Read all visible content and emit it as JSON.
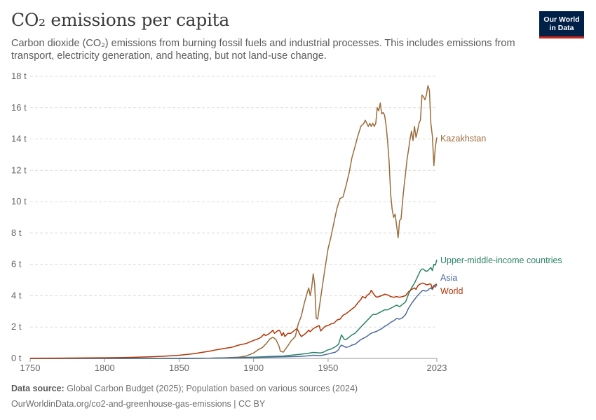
{
  "header": {
    "title": "CO₂ emissions per capita",
    "subtitle": "Carbon dioxide (CO₂) emissions from burning fossil fuels and industrial processes. This includes emissions from transport, electricity generation, and heating, but not land-use change.",
    "logo_line1": "Our World",
    "logo_line2": "in Data"
  },
  "footer": {
    "source_label": "Data source:",
    "source_text": "Global Carbon Budget (2025); Population based on various sources (2024)",
    "url_text": "OurWorldinData.org/co2-and-greenhouse-gas-emissions | CC BY"
  },
  "chart_data": {
    "type": "line",
    "title": "CO₂ emissions per capita",
    "xlim": [
      1750,
      2023
    ],
    "ylim": [
      0,
      18
    ],
    "x_ticks": [
      1750,
      1800,
      1850,
      1900,
      1950,
      2023
    ],
    "y_ticks": [
      0,
      2,
      4,
      6,
      8,
      10,
      12,
      14,
      16,
      18
    ],
    "y_tick_labels": [
      "0 t",
      "2 t",
      "4 t",
      "6 t",
      "8 t",
      "10 t",
      "12 t",
      "14 t",
      "16 t",
      "18 t"
    ],
    "grid": "horizontal-dashed",
    "legend": "line-end labels",
    "series": [
      {
        "name": "Kazakhstan",
        "color": "#9a6c3a",
        "points": [
          [
            1850,
            0
          ],
          [
            1870,
            0.01
          ],
          [
            1880,
            0.03
          ],
          [
            1890,
            0.08
          ],
          [
            1895,
            0.15
          ],
          [
            1900,
            0.35
          ],
          [
            1903,
            0.55
          ],
          [
            1906,
            0.7
          ],
          [
            1909,
            1.0
          ],
          [
            1911,
            1.25
          ],
          [
            1913,
            1.35
          ],
          [
            1915,
            1.2
          ],
          [
            1917,
            0.8
          ],
          [
            1918,
            0.45
          ],
          [
            1920,
            0.4
          ],
          [
            1921,
            0.55
          ],
          [
            1923,
            0.8
          ],
          [
            1925,
            1.1
          ],
          [
            1928,
            1.4
          ],
          [
            1930,
            2.2
          ],
          [
            1932,
            2.7
          ],
          [
            1934,
            3.5
          ],
          [
            1936,
            4.2
          ],
          [
            1937,
            4.5
          ],
          [
            1938,
            4.0
          ],
          [
            1939,
            4.5
          ],
          [
            1940,
            5.4
          ],
          [
            1941,
            4.7
          ],
          [
            1942,
            2.6
          ],
          [
            1943,
            2.5
          ],
          [
            1944,
            3.2
          ],
          [
            1946,
            4.5
          ],
          [
            1948,
            5.8
          ],
          [
            1950,
            7.0
          ],
          [
            1952,
            7.8
          ],
          [
            1954,
            8.7
          ],
          [
            1956,
            9.6
          ],
          [
            1958,
            10.2
          ],
          [
            1960,
            10.3
          ],
          [
            1962,
            11.0
          ],
          [
            1964,
            11.8
          ],
          [
            1966,
            12.8
          ],
          [
            1968,
            13.5
          ],
          [
            1970,
            14.2
          ],
          [
            1972,
            14.8
          ],
          [
            1974,
            15.0
          ],
          [
            1975,
            15.2
          ],
          [
            1976,
            15.0
          ],
          [
            1977,
            14.8
          ],
          [
            1978,
            15.0
          ],
          [
            1979,
            14.8
          ],
          [
            1980,
            15.0
          ],
          [
            1981,
            14.8
          ],
          [
            1982,
            15.0
          ],
          [
            1983,
            16.0
          ],
          [
            1984,
            15.8
          ],
          [
            1985,
            16.3
          ],
          [
            1986,
            15.6
          ],
          [
            1987,
            15.7
          ],
          [
            1988,
            15.5
          ],
          [
            1989,
            14.8
          ],
          [
            1990,
            13.8
          ],
          [
            1991,
            12.5
          ],
          [
            1992,
            10.5
          ],
          [
            1993,
            9.5
          ],
          [
            1994,
            9.0
          ],
          [
            1995,
            9.2
          ],
          [
            1996,
            8.5
          ],
          [
            1997,
            7.7
          ],
          [
            1998,
            8.8
          ],
          [
            1999,
            8.9
          ],
          [
            2000,
            10.0
          ],
          [
            2001,
            11.0
          ],
          [
            2002,
            11.8
          ],
          [
            2003,
            12.7
          ],
          [
            2004,
            13.3
          ],
          [
            2005,
            14.0
          ],
          [
            2006,
            14.5
          ],
          [
            2007,
            13.9
          ],
          [
            2008,
            14.8
          ],
          [
            2009,
            14.1
          ],
          [
            2010,
            14.5
          ],
          [
            2011,
            15.0
          ],
          [
            2012,
            15.2
          ],
          [
            2013,
            16.8
          ],
          [
            2014,
            16.7
          ],
          [
            2015,
            16.5
          ],
          [
            2016,
            16.8
          ],
          [
            2017,
            17.4
          ],
          [
            2018,
            17.1
          ],
          [
            2019,
            15.0
          ],
          [
            2020,
            14.2
          ],
          [
            2021,
            12.3
          ],
          [
            2022,
            13.5
          ],
          [
            2023,
            14.1
          ]
        ]
      },
      {
        "name": "Upper-middle-income countries",
        "color": "#2c8465",
        "points": [
          [
            1750,
            0
          ],
          [
            1800,
            0
          ],
          [
            1850,
            0
          ],
          [
            1870,
            0.01
          ],
          [
            1890,
            0.05
          ],
          [
            1900,
            0.08
          ],
          [
            1910,
            0.12
          ],
          [
            1920,
            0.15
          ],
          [
            1925,
            0.2
          ],
          [
            1930,
            0.25
          ],
          [
            1935,
            0.3
          ],
          [
            1940,
            0.38
          ],
          [
            1945,
            0.35
          ],
          [
            1947,
            0.4
          ],
          [
            1950,
            0.55
          ],
          [
            1952,
            0.6
          ],
          [
            1955,
            0.75
          ],
          [
            1957,
            0.9
          ],
          [
            1958,
            1.2
          ],
          [
            1959,
            1.5
          ],
          [
            1960,
            1.35
          ],
          [
            1961,
            1.2
          ],
          [
            1962,
            1.2
          ],
          [
            1964,
            1.35
          ],
          [
            1966,
            1.5
          ],
          [
            1968,
            1.6
          ],
          [
            1970,
            1.8
          ],
          [
            1972,
            2.0
          ],
          [
            1974,
            2.2
          ],
          [
            1976,
            2.4
          ],
          [
            1978,
            2.6
          ],
          [
            1980,
            2.8
          ],
          [
            1982,
            2.8
          ],
          [
            1984,
            2.9
          ],
          [
            1986,
            3.0
          ],
          [
            1988,
            3.1
          ],
          [
            1990,
            3.1
          ],
          [
            1992,
            3.2
          ],
          [
            1994,
            3.3
          ],
          [
            1996,
            3.4
          ],
          [
            1998,
            3.3
          ],
          [
            2000,
            3.45
          ],
          [
            2002,
            3.6
          ],
          [
            2004,
            4.1
          ],
          [
            2006,
            4.5
          ],
          [
            2008,
            4.8
          ],
          [
            2010,
            5.2
          ],
          [
            2012,
            5.6
          ],
          [
            2013,
            5.7
          ],
          [
            2014,
            5.7
          ],
          [
            2015,
            5.6
          ],
          [
            2016,
            5.55
          ],
          [
            2017,
            5.6
          ],
          [
            2018,
            5.7
          ],
          [
            2019,
            5.8
          ],
          [
            2020,
            5.6
          ],
          [
            2021,
            6.0
          ],
          [
            2022,
            5.95
          ],
          [
            2023,
            6.3
          ]
        ]
      },
      {
        "name": "Asia",
        "color": "#4c6a9c",
        "points": [
          [
            1750,
            0
          ],
          [
            1850,
            0
          ],
          [
            1870,
            0.01
          ],
          [
            1890,
            0.03
          ],
          [
            1900,
            0.05
          ],
          [
            1910,
            0.08
          ],
          [
            1920,
            0.1
          ],
          [
            1930,
            0.12
          ],
          [
            1935,
            0.15
          ],
          [
            1940,
            0.2
          ],
          [
            1945,
            0.18
          ],
          [
            1947,
            0.22
          ],
          [
            1950,
            0.28
          ],
          [
            1955,
            0.4
          ],
          [
            1957,
            0.55
          ],
          [
            1958,
            0.75
          ],
          [
            1959,
            0.85
          ],
          [
            1960,
            0.8
          ],
          [
            1962,
            0.7
          ],
          [
            1964,
            0.75
          ],
          [
            1966,
            0.85
          ],
          [
            1968,
            0.9
          ],
          [
            1970,
            1.05
          ],
          [
            1972,
            1.2
          ],
          [
            1974,
            1.3
          ],
          [
            1976,
            1.4
          ],
          [
            1978,
            1.55
          ],
          [
            1980,
            1.65
          ],
          [
            1982,
            1.7
          ],
          [
            1984,
            1.8
          ],
          [
            1986,
            1.9
          ],
          [
            1988,
            2.05
          ],
          [
            1990,
            2.15
          ],
          [
            1992,
            2.3
          ],
          [
            1994,
            2.4
          ],
          [
            1996,
            2.55
          ],
          [
            1998,
            2.5
          ],
          [
            2000,
            2.6
          ],
          [
            2002,
            2.8
          ],
          [
            2004,
            3.2
          ],
          [
            2006,
            3.5
          ],
          [
            2008,
            3.75
          ],
          [
            2010,
            4.0
          ],
          [
            2012,
            4.2
          ],
          [
            2013,
            4.3
          ],
          [
            2014,
            4.35
          ],
          [
            2015,
            4.3
          ],
          [
            2016,
            4.3
          ],
          [
            2017,
            4.35
          ],
          [
            2018,
            4.45
          ],
          [
            2019,
            4.5
          ],
          [
            2020,
            4.4
          ],
          [
            2021,
            4.6
          ],
          [
            2022,
            4.55
          ],
          [
            2023,
            4.7
          ]
        ]
      },
      {
        "name": "World",
        "color": "#b13507",
        "points": [
          [
            1750,
            0.01
          ],
          [
            1770,
            0.02
          ],
          [
            1790,
            0.03
          ],
          [
            1800,
            0.04
          ],
          [
            1810,
            0.05
          ],
          [
            1820,
            0.07
          ],
          [
            1830,
            0.1
          ],
          [
            1840,
            0.14
          ],
          [
            1850,
            0.2
          ],
          [
            1855,
            0.25
          ],
          [
            1860,
            0.3
          ],
          [
            1865,
            0.38
          ],
          [
            1870,
            0.45
          ],
          [
            1875,
            0.55
          ],
          [
            1880,
            0.63
          ],
          [
            1885,
            0.7
          ],
          [
            1890,
            0.85
          ],
          [
            1895,
            0.95
          ],
          [
            1900,
            1.15
          ],
          [
            1903,
            1.25
          ],
          [
            1905,
            1.35
          ],
          [
            1907,
            1.55
          ],
          [
            1908,
            1.45
          ],
          [
            1910,
            1.55
          ],
          [
            1912,
            1.7
          ],
          [
            1913,
            1.8
          ],
          [
            1914,
            1.6
          ],
          [
            1916,
            1.75
          ],
          [
            1917,
            1.8
          ],
          [
            1918,
            1.7
          ],
          [
            1919,
            1.45
          ],
          [
            1920,
            1.65
          ],
          [
            1921,
            1.4
          ],
          [
            1923,
            1.6
          ],
          [
            1925,
            1.6
          ],
          [
            1927,
            1.75
          ],
          [
            1929,
            1.9
          ],
          [
            1930,
            1.75
          ],
          [
            1931,
            1.55
          ],
          [
            1932,
            1.4
          ],
          [
            1933,
            1.45
          ],
          [
            1935,
            1.6
          ],
          [
            1937,
            1.8
          ],
          [
            1938,
            1.7
          ],
          [
            1940,
            1.9
          ],
          [
            1942,
            2.0
          ],
          [
            1944,
            2.1
          ],
          [
            1945,
            1.75
          ],
          [
            1946,
            1.85
          ],
          [
            1948,
            2.05
          ],
          [
            1950,
            2.1
          ],
          [
            1952,
            2.2
          ],
          [
            1954,
            2.25
          ],
          [
            1956,
            2.45
          ],
          [
            1958,
            2.5
          ],
          [
            1960,
            2.75
          ],
          [
            1962,
            2.85
          ],
          [
            1964,
            3.0
          ],
          [
            1966,
            3.15
          ],
          [
            1968,
            3.3
          ],
          [
            1970,
            3.55
          ],
          [
            1972,
            3.75
          ],
          [
            1973,
            3.95
          ],
          [
            1974,
            3.9
          ],
          [
            1975,
            3.85
          ],
          [
            1976,
            4.0
          ],
          [
            1978,
            4.15
          ],
          [
            1979,
            4.35
          ],
          [
            1980,
            4.2
          ],
          [
            1981,
            4.05
          ],
          [
            1982,
            3.95
          ],
          [
            1983,
            3.9
          ],
          [
            1984,
            3.95
          ],
          [
            1986,
            4.0
          ],
          [
            1988,
            4.1
          ],
          [
            1990,
            4.05
          ],
          [
            1992,
            3.95
          ],
          [
            1994,
            3.9
          ],
          [
            1996,
            3.95
          ],
          [
            1998,
            3.9
          ],
          [
            2000,
            3.95
          ],
          [
            2002,
            4.0
          ],
          [
            2004,
            4.25
          ],
          [
            2006,
            4.4
          ],
          [
            2008,
            4.5
          ],
          [
            2009,
            4.4
          ],
          [
            2010,
            4.6
          ],
          [
            2011,
            4.7
          ],
          [
            2012,
            4.75
          ],
          [
            2013,
            4.8
          ],
          [
            2014,
            4.8
          ],
          [
            2015,
            4.75
          ],
          [
            2016,
            4.7
          ],
          [
            2017,
            4.7
          ],
          [
            2018,
            4.75
          ],
          [
            2019,
            4.75
          ],
          [
            2020,
            4.45
          ],
          [
            2021,
            4.65
          ],
          [
            2022,
            4.7
          ],
          [
            2023,
            4.75
          ]
        ]
      }
    ]
  }
}
